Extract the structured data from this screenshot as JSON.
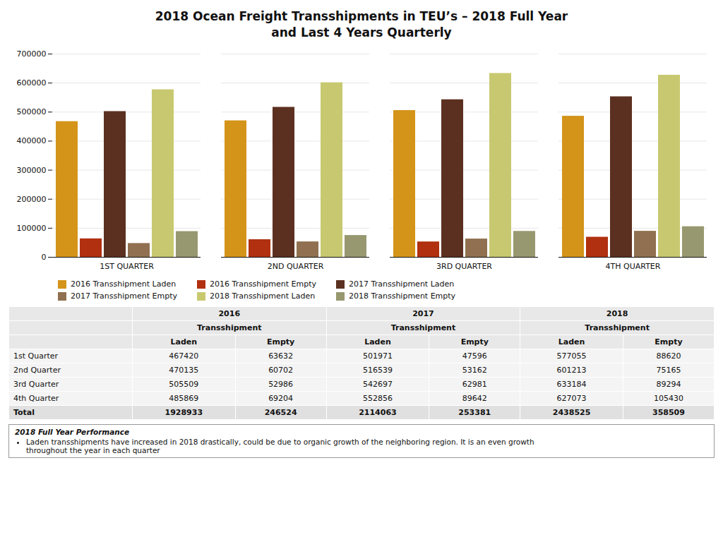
{
  "chart_data": {
    "type": "bar",
    "title": "2018 Ocean Freight Transshipments in TEU’s – 2018 Full Year\nand Last 4 Years Quarterly",
    "categories": [
      "1ST QUARTER",
      "2ND QUARTER",
      "3RD QUARTER",
      "4TH QUARTER"
    ],
    "series": [
      {
        "name": "2016 Transshipment Laden",
        "color": "#D4941A",
        "values": [
          467420,
          470135,
          505509,
          485869
        ]
      },
      {
        "name": "2016 Transshipment Empty",
        "color": "#B03010",
        "values": [
          63632,
          60702,
          52986,
          69204
        ]
      },
      {
        "name": "2017 Transshipment Laden",
        "color": "#5C3020",
        "values": [
          501971,
          516539,
          542697,
          552856
        ]
      },
      {
        "name": "2017 Transshipment Empty",
        "color": "#907050",
        "values": [
          47596,
          53162,
          62981,
          89642
        ]
      },
      {
        "name": "2018 Transshipment Laden",
        "color": "#C8C870",
        "values": [
          577055,
          601213,
          633184,
          627073
        ]
      },
      {
        "name": "2018 Transshipment Empty",
        "color": "#989870",
        "values": [
          88620,
          75165,
          89294,
          105430
        ]
      }
    ],
    "ylim": [
      0,
      700000
    ],
    "yticks": [
      0,
      100000,
      200000,
      300000,
      400000,
      500000,
      600000,
      700000
    ],
    "grid": true,
    "legend": "bottom",
    "table": {
      "header_rows": [
        [
          "2016",
          "2017",
          "2018"
        ],
        [
          "Transshipment",
          "Transshipment",
          "Transshipment"
        ]
      ],
      "columns": [
        "Laden",
        "Empty",
        "Laden",
        "Empty",
        "Laden",
        "Empty"
      ],
      "row_labels": [
        "1st Quarter",
        "2nd Quarter",
        "3rd Quarter",
        "4th Quarter",
        "Total"
      ],
      "values": [
        [
          467420,
          63632,
          501971,
          47596,
          577055,
          88620
        ],
        [
          470135,
          60702,
          516539,
          53162,
          601213,
          75165
        ],
        [
          505509,
          52986,
          542697,
          62981,
          633184,
          89294
        ],
        [
          485869,
          69204,
          552856,
          89642,
          627073,
          105430
        ],
        [
          1928933,
          246524,
          2114063,
          253381,
          2438525,
          358509
        ]
      ]
    },
    "note": {
      "title": "2018 Full Year Performance",
      "text": "Laden transshipments have increased in 2018 drastically, could be due to organic growth of the neighboring region. It is an even growth\nthroughout the year in each quarter"
    }
  }
}
